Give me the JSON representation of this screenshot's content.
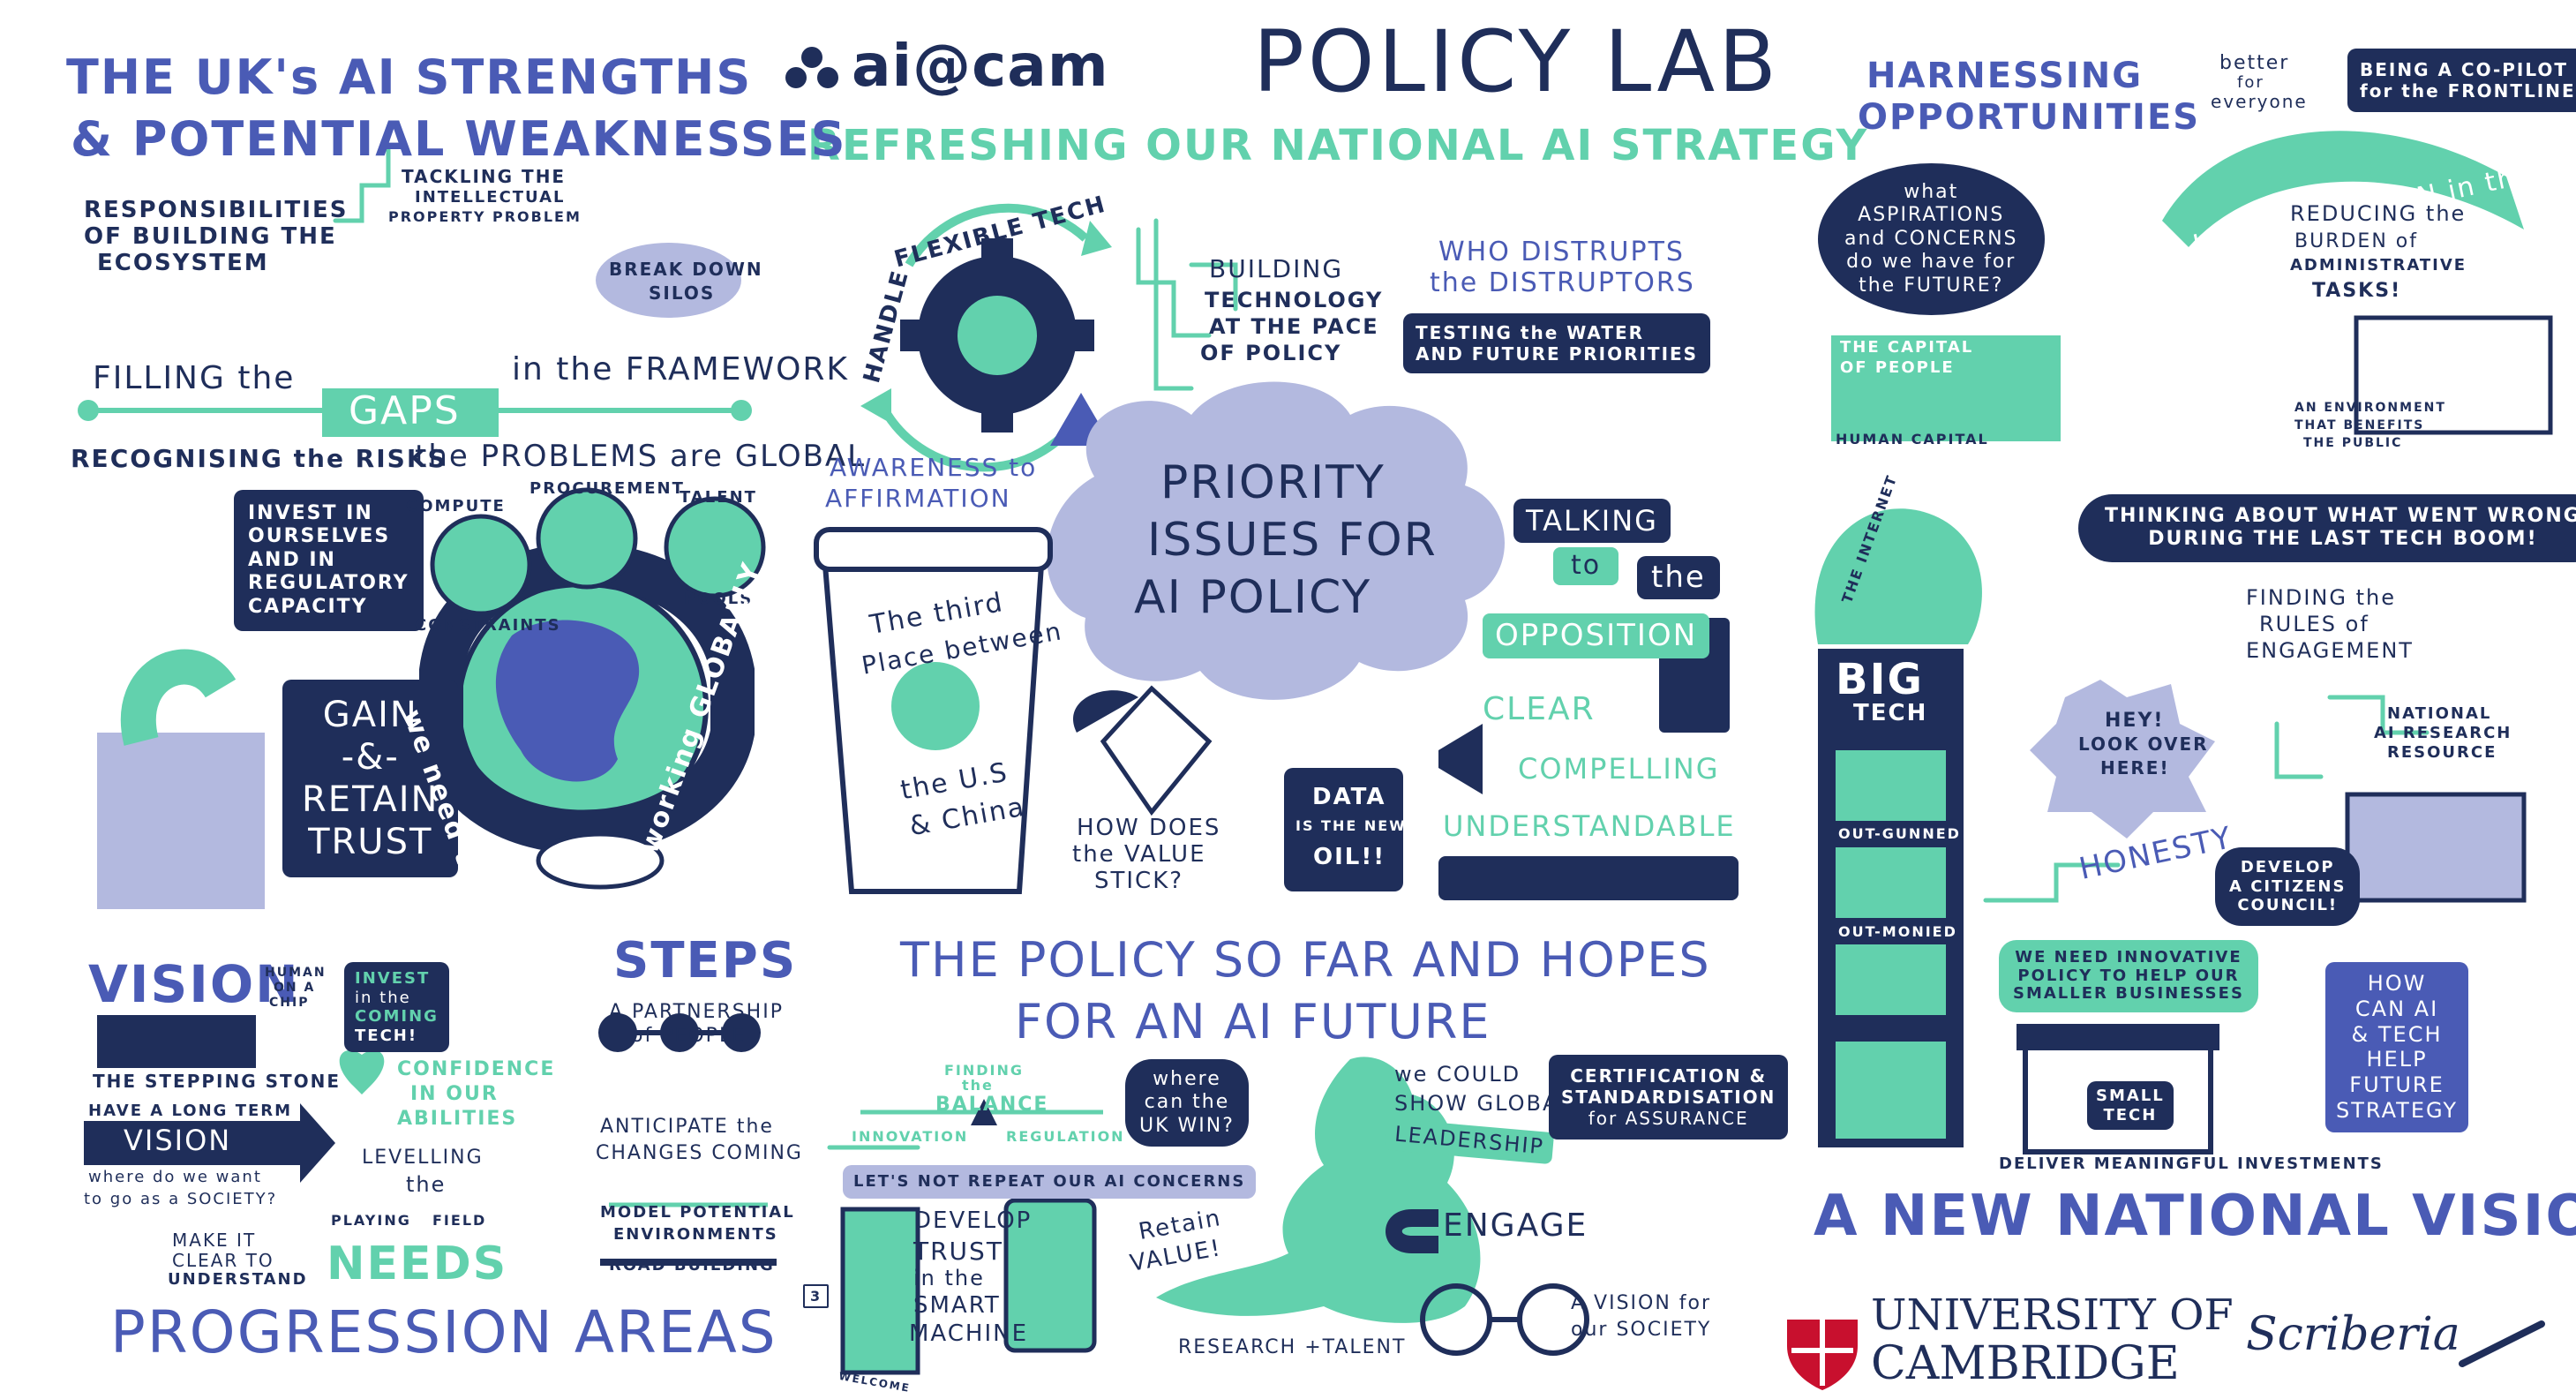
{
  "header": {
    "logo_text": "ai@cam",
    "title": "POLICY LAB",
    "subtitle": "REFRESHING OUR NATIONAL AI STRATEGY"
  },
  "colors": {
    "navy": "#1f2e5a",
    "blue": "#4a5bb5",
    "mint": "#62d1ad",
    "lavender": "#b3b9df"
  },
  "strengths": {
    "title_1": "THE UK's AI STRENGTHS",
    "title_2": "& POTENTIAL WEAKNESSES",
    "responsibilities_1": "RESPONSIBILITIES",
    "responsibilities_2": "OF BUILDING THE",
    "responsibilities_3": "ECOSYSTEM",
    "ip_1": "TACKLING THE",
    "ip_2": "INTELLECTUAL",
    "ip_3": "PROPERTY PROBLEM",
    "silos_1": "BREAK DOWN",
    "silos_2": "SILOS",
    "filling": "FILLING the",
    "gaps": "GAPS",
    "framework": "in the FRAMEWORK",
    "risks": "RECOGNISING the RISKS",
    "invest_1": "INVEST IN",
    "invest_2": "OURSELVES",
    "invest_3": "AND IN",
    "invest_4": "REGULATORY",
    "invest_5": "CAPACITY",
    "problems": "the PROBLEMS are GLOBAL",
    "compute_1": "COMPUTE",
    "compute_2": "CONSTRAINTS",
    "procurement": "PROCUREMENT",
    "talent_1": "TALENT",
    "talent_2": "POOLS",
    "gain_1": "GAIN",
    "gain_2": "-&-",
    "gain_3": "RETAIN",
    "gain_4": "TRUST",
    "globally_1": "we need to be",
    "globally_2": "working GLOBALLY"
  },
  "priority": {
    "flexible": "FLEXIBLE TECH",
    "handle": "HANDLE",
    "building_1": "BUILDING",
    "building_2": "TECHNOLOGY",
    "building_3": "AT THE PACE",
    "building_4": "OF POLICY",
    "disrupts_1": "WHO DISTRUPTS",
    "disrupts_2": "the DISTRUPTORS",
    "testing_1": "TESTING the WATER",
    "testing_2": "AND FUTURE PRIORITIES",
    "awareness_1": "AWARENESS to",
    "awareness_2": "AFFIRMATION",
    "cloud_1": "PRIORITY",
    "cloud_2": "ISSUES FOR",
    "cloud_3": "AI POLICY",
    "cup_1": "The third",
    "cup_2": "Place between",
    "cup_3": "the U.S",
    "cup_4": "& China",
    "talking": "TALKING",
    "to": "to",
    "the": "the",
    "opposition": "OPPOSITION",
    "clear": "CLEAR",
    "compelling": "COMPELLING",
    "understandable": "UNDERSTANDABLE",
    "value_1": "HOW DOES",
    "value_2": "the VALUE",
    "value_3": "STICK?",
    "data_1": "DATA",
    "data_2": "IS THE NEW",
    "data_3": "OIL!!"
  },
  "harnessing": {
    "title_1": "HARNESSING",
    "title_2": "OPPORTUNITIES",
    "better_1": "better",
    "better_2": "for",
    "better_3": "everyone",
    "copilot_1": "BEING A CO-PILOT",
    "copilot_2": "for the FRONTLINE",
    "aspirations_1": "what",
    "aspirations_2": "ASPIRATIONS",
    "aspirations_3": "and CONCERNS",
    "aspirations_4": "do we have for",
    "aspirations_5": "the FUTURE?",
    "loop": "Keep the HUMAN in the LOOP!",
    "burden_1": "REDUCING the",
    "burden_2": "BURDEN of",
    "burden_3": "ADMINISTRATIVE",
    "burden_4": "TASKS!",
    "capital_1": "THE CAPITAL",
    "capital_2": "OF PEOPLE",
    "human_capital": "HUMAN CAPITAL",
    "env_1": "AN ENVIRONMENT",
    "env_2": "THAT BENEFITS",
    "env_3": "THE PUBLIC"
  },
  "vision": {
    "internet": "THE INTERNET",
    "wrong_1": "THINKING ABOUT WHAT WENT WRONG",
    "wrong_2": "DURING THE LAST TECH BOOM!",
    "rules_1": "FINDING the",
    "rules_2": "RULES of",
    "rules_3": "ENGAGEMENT",
    "big": "BIG",
    "tech": "TECH",
    "outgunned": "OUT-GUNNED",
    "outmonied": "OUT-MONIED",
    "hey_1": "HEY!",
    "hey_2": "LOOK OVER",
    "hey_3": "HERE!",
    "nairr_1": "NATIONAL",
    "nairr_2": "AI RESEARCH",
    "nairr_3": "RESOURCE",
    "honesty": "HONESTY",
    "council_1": "DEVELOP",
    "council_2": "A CITIZENS",
    "council_3": "COUNCIL!",
    "innovative_1": "WE NEED INNOVATIVE",
    "innovative_2": "POLICY TO HELP OUR",
    "innovative_3": "SMALLER BUSINESSES",
    "small_1": "SMALL",
    "small_2": "TECH",
    "howcan_1": "HOW",
    "howcan_2": "CAN AI",
    "howcan_3": "& TECH",
    "howcan_4": "HELP",
    "howcan_5": "FUTURE",
    "howcan_6": "STRATEGY",
    "deliver": "DELIVER MEANINGFUL INVESTMENTS",
    "new_vision": "A NEW NATIONAL VISION"
  },
  "progression": {
    "vision": "VISION",
    "human_chip_1": "HUMAN",
    "human_chip_2": "ON A",
    "human_chip_3": "CHIP",
    "invest_1": "INVEST",
    "invest_2": "in the",
    "invest_3": "COMING",
    "invest_4": "TECH!",
    "stepping": "THE STEPPING STONE",
    "confidence_1": "CONFIDENCE",
    "confidence_2": "IN OUR",
    "confidence_3": "ABILITIES",
    "steps": "STEPS",
    "partnership_1": "A PARTNERSHIP",
    "partnership_2": "of PEOPLE",
    "longterm": "HAVE A LONG TERM",
    "vision_arrow": "VISION",
    "society_1": "where do we want",
    "society_2": "to go as a SOCIETY?",
    "levelling_1": "LEVELLING",
    "levelling_2": "the",
    "playing": "PLAYING",
    "field": "FIELD",
    "anticipate_1": "ANTICIPATE the",
    "anticipate_2": "CHANGES COMING",
    "clear_1": "MAKE IT",
    "clear_2": "CLEAR TO",
    "clear_3": "UNDERSTAND",
    "needs": "NEEDS",
    "model_1": "MODEL POTENTIAL",
    "model_2": "ENVIRONMENTS",
    "road": "ROAD BUILDING",
    "title": "PROGRESSION AREAS"
  },
  "policy": {
    "title_1": "THE POLICY SO FAR AND HOPES",
    "title_2": "FOR AN AI FUTURE",
    "finding_1": "FINDING",
    "finding_2": "the",
    "finding_3": "BALANCE",
    "innovation": "INNOVATION",
    "regulation": "REGULATION",
    "ukwin_1": "where",
    "ukwin_2": "can the",
    "ukwin_3": "UK WIN?",
    "global_1": "we COULD",
    "global_2": "SHOW GLOBAL",
    "leadership": "LEADERSHIP",
    "cert_1": "CERTIFICATION &",
    "cert_2": "STANDARDISATION",
    "cert_3": "for ASSURANCE",
    "repeat": "LET'S NOT REPEAT OUR AI CONCERNS",
    "trust_1": "DEVELOP",
    "trust_2": "TRUST",
    "trust_3": "in the",
    "trust_4": "SMART",
    "trust_5": "MACHINE",
    "retain_1": "Retain",
    "retain_2": "VALUE!",
    "engage": "ENGAGE",
    "welcome": "WELCOME",
    "research": "RESEARCH +TALENT",
    "society_1": "A VISION for",
    "society_2": "our SOCIETY",
    "page_num": "3"
  },
  "footer": {
    "university_1": "UNIVERSITY OF",
    "university_2": "CAMBRIDGE",
    "scriberia": "Scriberia"
  }
}
